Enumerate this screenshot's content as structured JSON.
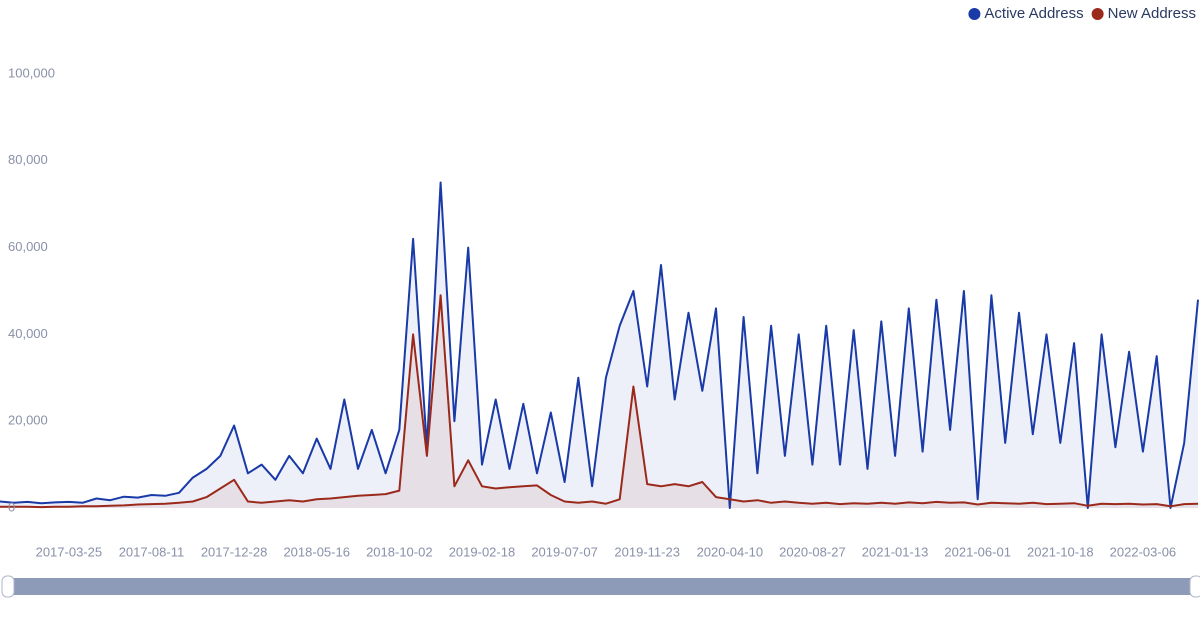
{
  "chart_data": {
    "type": "line",
    "categories": [
      null,
      null,
      null,
      null,
      null,
      "2017-03-25",
      null,
      null,
      null,
      null,
      null,
      "2017-08-11",
      null,
      null,
      null,
      null,
      null,
      "2017-12-28",
      null,
      null,
      null,
      null,
      null,
      "2018-05-16",
      null,
      null,
      null,
      null,
      null,
      "2018-10-02",
      null,
      null,
      null,
      null,
      null,
      "2019-02-18",
      null,
      null,
      null,
      null,
      null,
      "2019-07-07",
      null,
      null,
      null,
      null,
      null,
      "2019-11-23",
      null,
      null,
      null,
      null,
      null,
      "2020-04-10",
      null,
      null,
      null,
      null,
      null,
      "2020-08-27",
      null,
      null,
      null,
      null,
      null,
      "2021-01-13",
      null,
      null,
      null,
      null,
      null,
      "2021-06-01",
      null,
      null,
      null,
      null,
      null,
      "2021-10-18",
      null,
      null,
      null,
      null,
      null,
      "2022-03-06",
      null,
      null,
      null,
      null
    ],
    "series": [
      {
        "name": "Active Address",
        "color": "#1a3aa8",
        "values": [
          1500,
          1200,
          1400,
          1100,
          1300,
          1400,
          1200,
          2200,
          1800,
          2600,
          2400,
          3000,
          2800,
          3500,
          7000,
          9000,
          12000,
          19000,
          8000,
          10000,
          6500,
          12000,
          8000,
          16000,
          9000,
          25000,
          9000,
          18000,
          8000,
          18000,
          62000,
          14000,
          75000,
          20000,
          60000,
          10000,
          25000,
          9000,
          24000,
          8000,
          22000,
          6000,
          30000,
          5000,
          30000,
          42000,
          50000,
          28000,
          56000,
          25000,
          45000,
          27000,
          46000,
          0,
          44000,
          8000,
          42000,
          12000,
          40000,
          10000,
          42000,
          10000,
          41000,
          9000,
          43000,
          12000,
          46000,
          13000,
          48000,
          18000,
          50000,
          2000,
          49000,
          15000,
          45000,
          17000,
          40000,
          15000,
          38000,
          0,
          40000,
          14000,
          36000,
          13000,
          35000,
          0,
          15000,
          48000
        ]
      },
      {
        "name": "New Address",
        "color": "#9b2a1d",
        "values": [
          300,
          300,
          300,
          200,
          300,
          300,
          400,
          400,
          500,
          600,
          800,
          900,
          1000,
          1200,
          1500,
          2500,
          4500,
          6500,
          1500,
          1200,
          1500,
          1800,
          1500,
          2000,
          2200,
          2500,
          2800,
          3000,
          3200,
          4000,
          40000,
          12000,
          49000,
          5000,
          11000,
          5000,
          4500,
          4800,
          5000,
          5200,
          3000,
          1500,
          1200,
          1500,
          1000,
          2000,
          28000,
          5500,
          5000,
          5500,
          5000,
          6000,
          2500,
          2000,
          1500,
          1800,
          1200,
          1500,
          1200,
          1000,
          1200,
          900,
          1100,
          1000,
          1200,
          1000,
          1300,
          1100,
          1400,
          1200,
          1300,
          800,
          1200,
          1100,
          1000,
          1200,
          900,
          1000,
          1100,
          500,
          1000,
          900,
          1000,
          800,
          900,
          400,
          900,
          1000
        ]
      }
    ],
    "ylim": [
      0,
      100000
    ],
    "yticks": [
      0,
      {
        "value": 20000,
        "label": "20,000"
      },
      {
        "value": 40000,
        "label": "40,000"
      },
      {
        "value": 60000,
        "label": "60,000"
      },
      {
        "value": 80000,
        "label": "80,000"
      },
      {
        "value": 100000,
        "label": "100,000"
      }
    ]
  }
}
